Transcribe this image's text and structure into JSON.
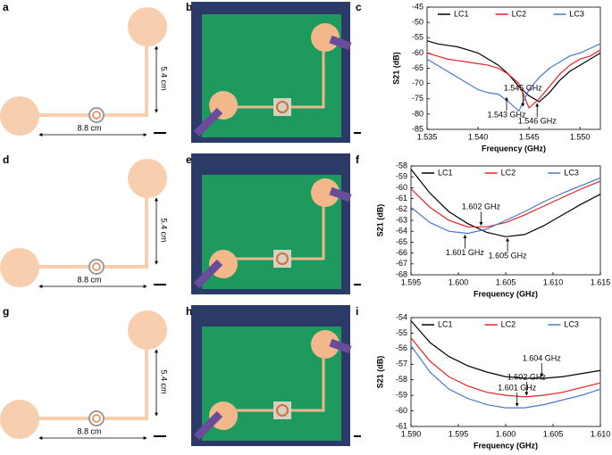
{
  "panel_labels": [
    "a",
    "b",
    "c",
    "d",
    "e",
    "f",
    "g",
    "h",
    "i"
  ],
  "schematics": [
    {
      "height_label": "5.4 cm",
      "width_label": "8.8 cm"
    },
    {
      "height_label": "5.4 cm",
      "width_label": "8.8 cm"
    },
    {
      "height_label": "5.4 cm",
      "width_label": "8.8 cm"
    }
  ],
  "chart_data": [
    {
      "type": "line",
      "xlabel": "Frequency (GHz)",
      "ylabel": "S21 (dB)",
      "legend": "top",
      "xlim": [
        1.535,
        1.552
      ],
      "xticks": [
        1.535,
        {
          "value": 1.54,
          "label": "1.540"
        },
        1.545,
        {
          "value": 1.55,
          "label": "1.550"
        }
      ],
      "ylim": [
        -85,
        -45
      ],
      "yticks": [
        -85,
        -80,
        -75,
        -70,
        -65,
        -60,
        -55,
        -50,
        -45
      ],
      "x": [
        1.535,
        1.536,
        1.537,
        1.538,
        1.539,
        1.54,
        1.541,
        1.542,
        1.543,
        1.544,
        1.545,
        1.546,
        1.547,
        1.548,
        1.549,
        1.55,
        1.551,
        1.552
      ],
      "series": [
        {
          "name": "LC1",
          "color": "#000000",
          "values": [
            -56,
            -57,
            -57.5,
            -58,
            -59,
            -60,
            -62,
            -64,
            -67,
            -71,
            -74,
            -76,
            -73,
            -69,
            -66,
            -64,
            -62,
            -60
          ]
        },
        {
          "name": "LC2",
          "color": "#e8202a",
          "values": [
            -60,
            -61,
            -62,
            -62.5,
            -63,
            -63.5,
            -64,
            -65,
            -67,
            -70,
            -78,
            -75,
            -71,
            -67,
            -64,
            -62,
            -61,
            -59
          ]
        },
        {
          "name": "LC3",
          "color": "#4a78c8",
          "values": [
            -62,
            -64,
            -66,
            -68,
            -70,
            -72,
            -73,
            -73.5,
            -76,
            -79,
            -72,
            -68,
            -65,
            -63,
            -61,
            -60,
            -58.5,
            -57
          ]
        }
      ],
      "annotations": [
        {
          "text": "1.545 GHz",
          "x": 1.5444,
          "y": -78,
          "side": "above"
        },
        {
          "text": "1.543 GHz",
          "x": 1.5428,
          "y": -74,
          "side": "below"
        },
        {
          "text": "1.546 GHz",
          "x": 1.5458,
          "y": -76,
          "side": "below"
        }
      ]
    },
    {
      "type": "line",
      "xlabel": "Frequency (GHz)",
      "ylabel": "S21 (dB)",
      "legend": "top",
      "xlim": [
        1.595,
        1.615
      ],
      "xticks": [
        1.595,
        {
          "value": 1.6,
          "label": "1.600"
        },
        1.605,
        {
          "value": 1.61,
          "label": "1.610"
        },
        1.615
      ],
      "ylim": [
        -68,
        -58
      ],
      "yticks": [
        -68,
        -67,
        -66,
        -65,
        -64,
        -63,
        -62,
        -61,
        -60,
        -59,
        -58
      ],
      "x": [
        1.595,
        1.597,
        1.599,
        1.601,
        1.603,
        1.605,
        1.607,
        1.609,
        1.611,
        1.613,
        1.615
      ],
      "series": [
        {
          "name": "LC1",
          "color": "#000000",
          "values": [
            -58.3,
            -60.5,
            -62.2,
            -63.3,
            -64.1,
            -64.5,
            -64.3,
            -63.5,
            -62.5,
            -61.5,
            -60.6
          ]
        },
        {
          "name": "LC2",
          "color": "#e8202a",
          "values": [
            -60.1,
            -61.8,
            -63.0,
            -63.6,
            -63.6,
            -63.2,
            -62.5,
            -61.7,
            -60.9,
            -60.1,
            -59.4
          ]
        },
        {
          "name": "LC3",
          "color": "#4a78c8",
          "values": [
            -61.8,
            -63.2,
            -64.0,
            -64.2,
            -63.8,
            -63.0,
            -62.2,
            -61.3,
            -60.5,
            -59.8,
            -59.1
          ]
        }
      ],
      "annotations": [
        {
          "text": "1.602 GHz",
          "x": 1.6024,
          "y": -63.6,
          "side": "above"
        },
        {
          "text": "1.601 GHz",
          "x": 1.6007,
          "y": -64.2,
          "side": "below"
        },
        {
          "text": "1.605 GHz",
          "x": 1.6052,
          "y": -64.5,
          "side": "below"
        }
      ]
    },
    {
      "type": "line",
      "xlabel": "Frequency (GHz)",
      "ylabel": "S21 (dB)",
      "legend": "top",
      "xlim": [
        1.59,
        1.61
      ],
      "xticks": [
        {
          "value": 1.59,
          "label": "1.590"
        },
        1.595,
        {
          "value": 1.6,
          "label": "1.600"
        },
        1.605,
        {
          "value": 1.61,
          "label": "1.610"
        }
      ],
      "ylim": [
        -61,
        -54
      ],
      "yticks": [
        -61,
        -60,
        -59,
        -58,
        -57,
        -56,
        -55,
        -54
      ],
      "x": [
        1.59,
        1.592,
        1.594,
        1.596,
        1.598,
        1.6,
        1.602,
        1.604,
        1.606,
        1.608,
        1.61
      ],
      "series": [
        {
          "name": "LC1",
          "color": "#000000",
          "values": [
            -54.2,
            -55.6,
            -56.5,
            -57.1,
            -57.5,
            -57.8,
            -57.9,
            -57.9,
            -57.8,
            -57.6,
            -57.4
          ]
        },
        {
          "name": "LC2",
          "color": "#e8202a",
          "values": [
            -55.3,
            -56.8,
            -57.8,
            -58.4,
            -58.8,
            -59.0,
            -59.1,
            -59.0,
            -58.8,
            -58.5,
            -58.2
          ]
        },
        {
          "name": "LC3",
          "color": "#4a78c8",
          "values": [
            -55.8,
            -57.5,
            -58.6,
            -59.2,
            -59.6,
            -59.8,
            -59.8,
            -59.6,
            -59.3,
            -59.0,
            -58.6
          ]
        }
      ],
      "annotations": [
        {
          "text": "1.604 GHz",
          "x": 1.6038,
          "y": -57.9,
          "side": "above"
        },
        {
          "text": "1.602 GHz",
          "x": 1.6022,
          "y": -59.1,
          "side": "above"
        },
        {
          "text": "1.601 GHz",
          "x": 1.6012,
          "y": -59.8,
          "side": "above"
        }
      ]
    }
  ]
}
